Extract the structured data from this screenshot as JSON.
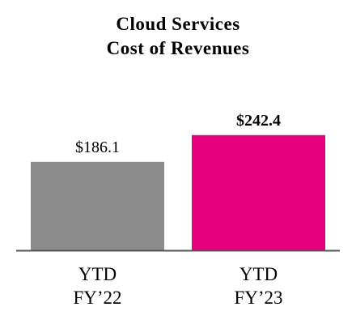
{
  "chart_data": {
    "type": "bar",
    "title": [
      "Cloud Services",
      "Cost of Revenues"
    ],
    "categories": [
      [
        "YTD",
        "FY’22"
      ],
      [
        "YTD",
        "FY’23"
      ]
    ],
    "values": [
      186.1,
      242.4
    ],
    "value_labels": [
      "$186.1",
      "$242.4"
    ],
    "value_label_bold": [
      false,
      true
    ],
    "colors": [
      "#8c8c8c",
      "#e6007e"
    ],
    "axis_color": "#555555",
    "ylim": [
      0,
      300
    ],
    "grid": false,
    "legend": "none"
  }
}
